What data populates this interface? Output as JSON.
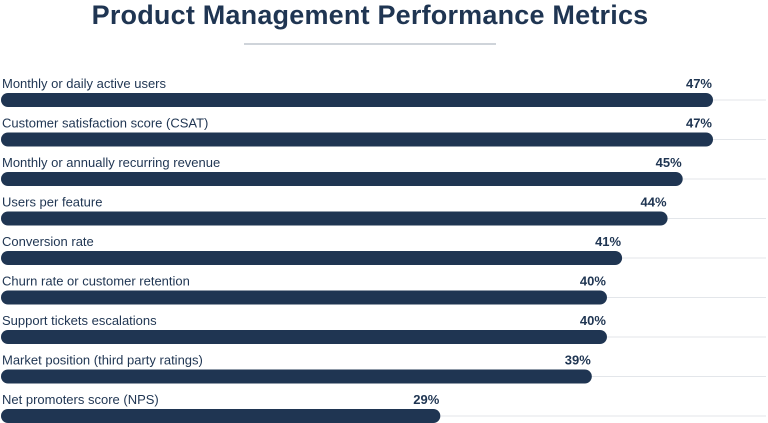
{
  "chart_data": {
    "type": "bar",
    "orientation": "horizontal",
    "title": "Product Management Performance Metrics",
    "categories": [
      "Monthly or daily active users",
      "Customer satisfaction score (CSAT)",
      "Monthly or annually recurring revenue",
      "Users per feature",
      "Conversion rate",
      "Churn rate or customer retention",
      "Support tickets escalations",
      "Market position (third party ratings)",
      "Net promoters score (NPS)"
    ],
    "values": [
      47,
      47,
      45,
      44,
      41,
      40,
      40,
      39,
      29
    ],
    "value_labels": [
      "47%",
      "47%",
      "45%",
      "44%",
      "41%",
      "40%",
      "40%",
      "39%",
      "29%"
    ],
    "unit": "%",
    "xlim": [
      0,
      47
    ],
    "grid": false,
    "legend": "none",
    "colors": {
      "bar": "#1f3552",
      "track": "#e3e6ea",
      "text": "#1f3552",
      "title_rule": "#cfd4da"
    }
  }
}
